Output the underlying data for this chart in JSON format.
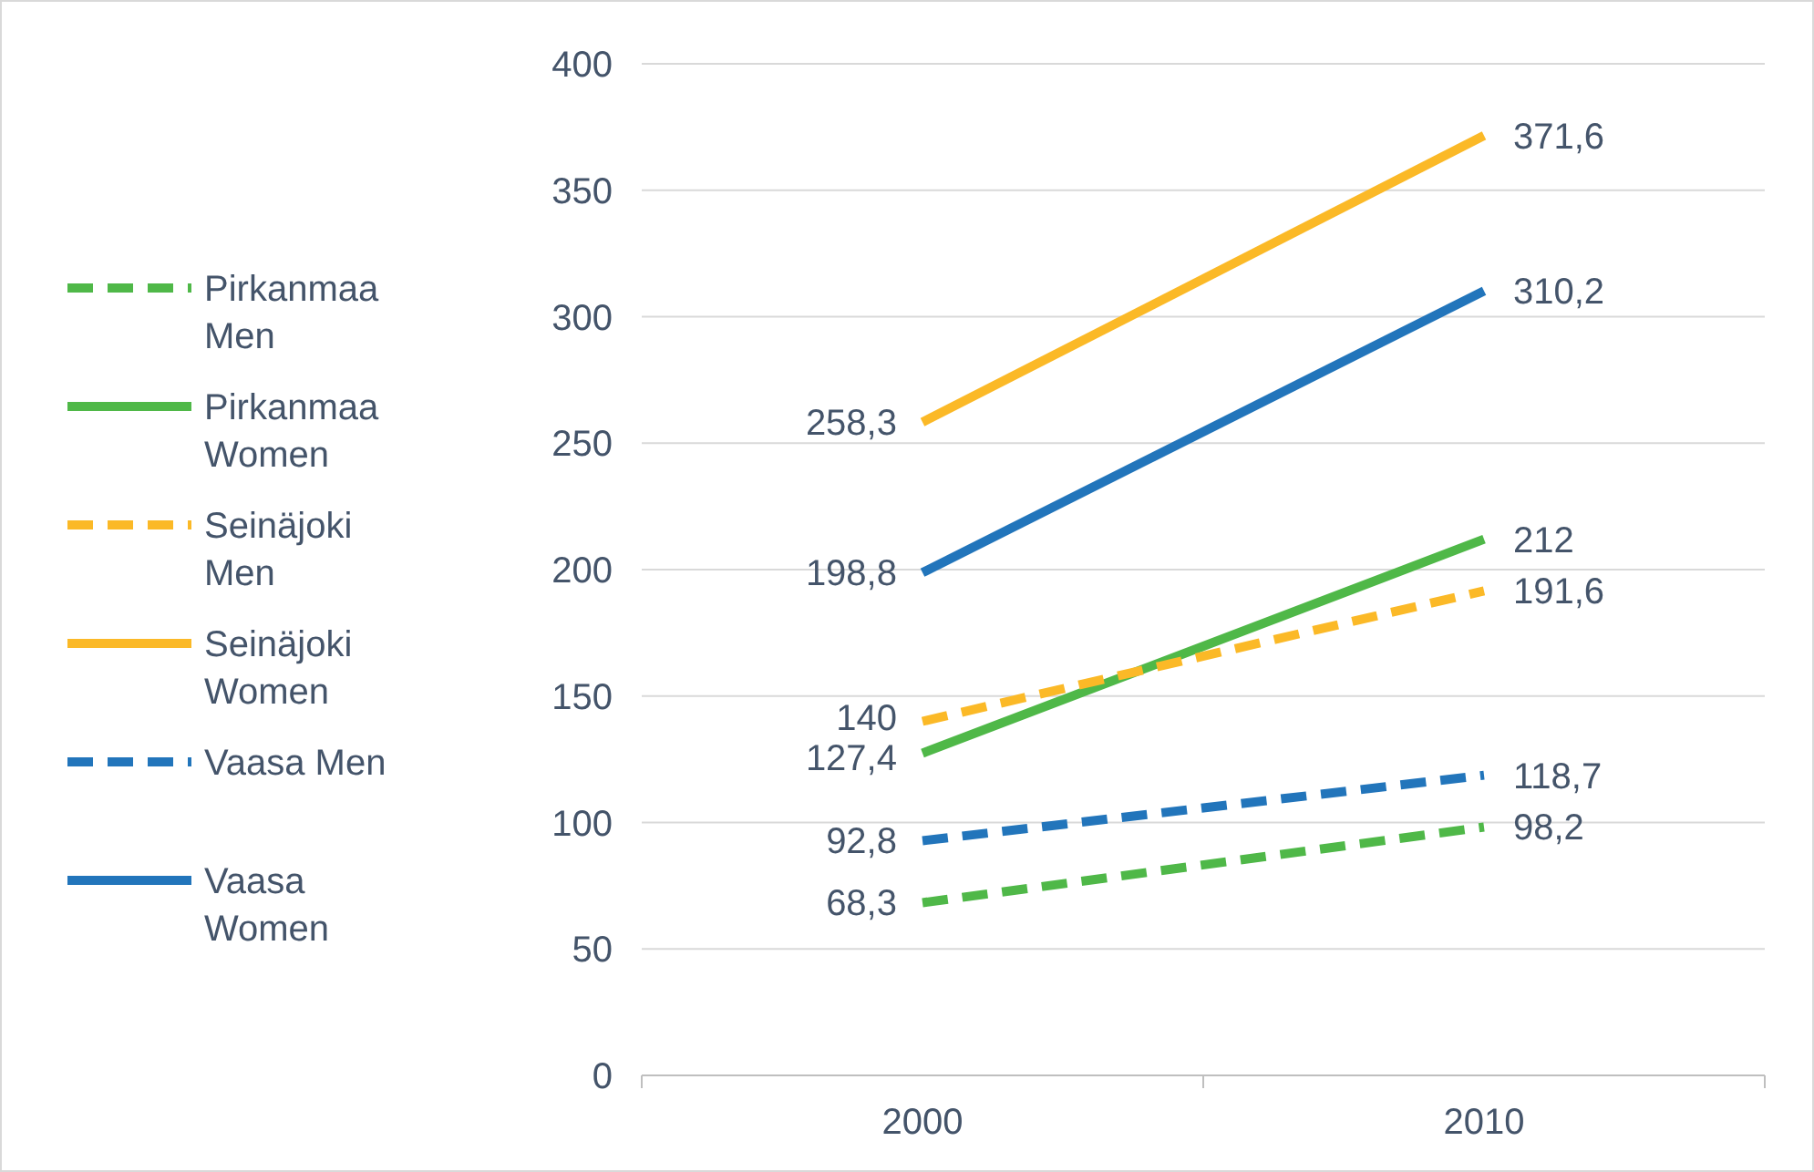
{
  "chart_data": {
    "type": "line",
    "categories": [
      "2000",
      "2010"
    ],
    "ylim": [
      0,
      400
    ],
    "yticks": [
      0,
      50,
      100,
      150,
      200,
      250,
      300,
      350,
      400
    ],
    "grid": "y",
    "legend": "left",
    "marker": "none",
    "series": [
      {
        "name": "Pirkanmaa Men",
        "color": "#4fb848",
        "line_style": "dashed",
        "values": [
          68.3,
          98.2
        ],
        "value_labels": [
          "68,3",
          "98,2"
        ]
      },
      {
        "name": "Pirkanmaa Women",
        "color": "#4fb848",
        "line_style": "solid",
        "values": [
          127.4,
          212
        ],
        "value_labels": [
          "127,4",
          "212"
        ]
      },
      {
        "name": "Seinäjoki Men",
        "color": "#fbb927",
        "line_style": "dashed",
        "values": [
          140,
          191.6
        ],
        "value_labels": [
          "140",
          "191,6"
        ]
      },
      {
        "name": "Seinäjoki Women",
        "color": "#fbb927",
        "line_style": "solid",
        "values": [
          258.3,
          371.6
        ],
        "value_labels": [
          "258,3",
          "371,6"
        ]
      },
      {
        "name": "Vaasa Men",
        "color": "#2275bb",
        "line_style": "dashed",
        "values": [
          92.8,
          118.7
        ],
        "value_labels": [
          "92,8",
          "118,7"
        ]
      },
      {
        "name": "Vaasa Women",
        "color": "#2275bb",
        "line_style": "solid",
        "values": [
          198.8,
          310.2
        ],
        "value_labels": [
          "198,8",
          "310,2"
        ]
      }
    ]
  }
}
